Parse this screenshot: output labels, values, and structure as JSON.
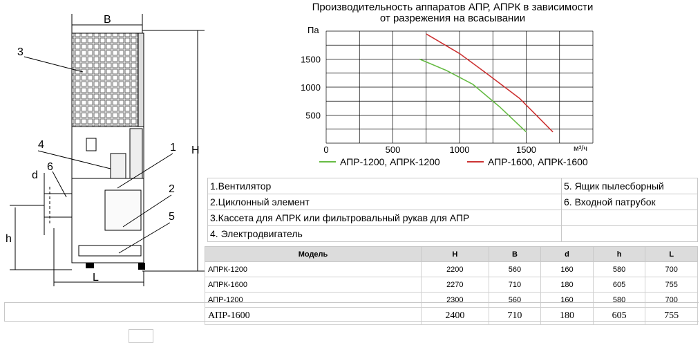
{
  "drawing": {
    "labels": {
      "B": "B",
      "H": "H",
      "L": "L",
      "d": "d",
      "h": "h",
      "n1": "1",
      "n2": "2",
      "n3": "3",
      "n4": "4",
      "n5": "5",
      "n6": "6"
    }
  },
  "chart": {
    "title_line1": "Производительность аппаратов АПР, АПРК в зависимости",
    "title_line2": "от разрежения на всасывании",
    "ylabel": "Па",
    "xunit": "м³/ч",
    "y_ticks": [
      "500",
      "1000",
      "1500"
    ],
    "x_ticks": [
      "0",
      "500",
      "1000",
      "1500"
    ],
    "legend_green": "АПР-1200, АПРК-1200",
    "legend_red": "АПР-1600, АПРК-1600",
    "color_green": "#66bb44",
    "color_red": "#cc3333"
  },
  "chart_data": {
    "type": "line",
    "title": "Производительность аппаратов АПР, АПРК в зависимости от разрежения на всасывании",
    "xlabel": "м³/ч",
    "ylabel": "Па",
    "xlim": [
      0,
      2000
    ],
    "ylim": [
      0,
      2000
    ],
    "series": [
      {
        "name": "АПР-1200, АПРК-1200",
        "x": [
          700,
          900,
          1100,
          1300,
          1500
        ],
        "y": [
          1500,
          1300,
          1050,
          650,
          200
        ]
      },
      {
        "name": "АПР-1600, АПРК-1600",
        "x": [
          750,
          1000,
          1200,
          1450,
          1700
        ],
        "y": [
          1950,
          1600,
          1250,
          800,
          200
        ]
      }
    ]
  },
  "parts": {
    "p1": "1.Вентилятор",
    "p2": "2.Циклонный элемент",
    "p3": "3.Кассета для АПРК или фильтровальный рукав для АПР",
    "p4": "4. Электродвигатель",
    "p5": "5. Ящик пылесборный",
    "p6": "6. Входной патрубок"
  },
  "specs": {
    "headers": [
      "Модель",
      "H",
      "B",
      "d",
      "h",
      "L"
    ],
    "rows": [
      [
        "АПРК-1200",
        "2200",
        "560",
        "160",
        "580",
        "700"
      ],
      [
        "АПРК-1600",
        "2270",
        "710",
        "180",
        "605",
        "755"
      ],
      [
        "АПР-1200",
        "2300",
        "560",
        "160",
        "580",
        "700"
      ],
      [
        "АПР-1600",
        "2400",
        "710",
        "180",
        "605",
        "755"
      ]
    ]
  }
}
